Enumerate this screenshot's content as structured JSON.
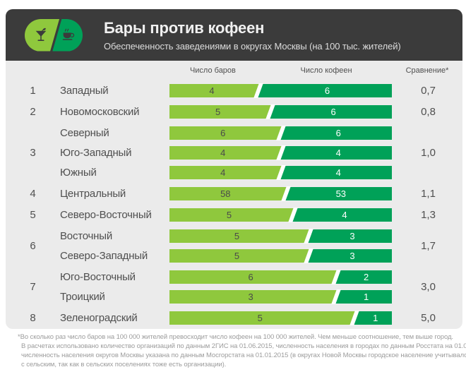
{
  "header": {
    "title": "Бары против кофеен",
    "subtitle": "Обеспеченность заведениями в округах Москвы (на 100 тыс. жителей)",
    "icons": [
      "cocktail-icon",
      "coffee-cup-icon"
    ]
  },
  "columns": {
    "bars": "Число баров",
    "cafes": "Число кофеен",
    "comparison": "Сравнение*"
  },
  "colors": {
    "bars_segment": "#8fc83d",
    "cafes_segment": "#00a158",
    "header_bg": "#3b3b3b",
    "card_bg": "#ebebeb",
    "text": "#4f4f4f",
    "footnote_text": "#9c9c9c",
    "divider": "#ffffff"
  },
  "table": {
    "groups": [
      {
        "rank": "1",
        "ratio": "0,7",
        "rows": [
          {
            "name": "Западный",
            "bars": 4,
            "cafes": 6
          }
        ]
      },
      {
        "rank": "2",
        "ratio": "0,8",
        "rows": [
          {
            "name": "Новомосковский",
            "bars": 5,
            "cafes": 6
          }
        ]
      },
      {
        "rank": "3",
        "ratio": "1,0",
        "rows": [
          {
            "name": "Северный",
            "bars": 6,
            "cafes": 6
          },
          {
            "name": "Юго-Западный",
            "bars": 4,
            "cafes": 4
          },
          {
            "name": "Южный",
            "bars": 4,
            "cafes": 4
          }
        ]
      },
      {
        "rank": "4",
        "ratio": "1,1",
        "rows": [
          {
            "name": "Центральный",
            "bars": 58,
            "cafes": 53
          }
        ]
      },
      {
        "rank": "5",
        "ratio": "1,3",
        "rows": [
          {
            "name": "Северо-Восточный",
            "bars": 5,
            "cafes": 4
          }
        ]
      },
      {
        "rank": "6",
        "ratio": "1,7",
        "rows": [
          {
            "name": "Восточный",
            "bars": 5,
            "cafes": 3
          },
          {
            "name": "Северо-Западный",
            "bars": 5,
            "cafes": 3
          }
        ]
      },
      {
        "rank": "7",
        "ratio": "3,0",
        "rows": [
          {
            "name": "Юго-Восточный",
            "bars": 6,
            "cafes": 2
          },
          {
            "name": "Троицкий",
            "bars": 3,
            "cafes": 1
          }
        ]
      },
      {
        "rank": "8",
        "ratio": "5,0",
        "rows": [
          {
            "name": "Зеленоградский",
            "bars": 5,
            "cafes": 1
          }
        ]
      }
    ]
  },
  "footnote": {
    "lines": [
      "*Во сколько раз число баров на 100 000 жителей превосходит число кофеен на 100 000 жителей. Чем меньше соотношение, тем выше город.",
      "В расчетах использовано количество организаций по данным 2ГИС на 01.06.2015, численность населения в городах по данным Росстата на 01.01.2015,",
      "численность населения округов Москвы указана по данным Мосгорстата на 01.01.2015 (в округах Новой Москвы городское население учитывалось вместе",
      "с сельским, так как в сельских поселениях тоже есть организации)."
    ]
  },
  "chart_data": {
    "type": "bar",
    "variant": "horizontal-paired-stacked-100pct",
    "title": "Бары против кофеен",
    "subtitle": "Обеспеченность заведениями в округах Москвы (на 100 тыс. жителей)",
    "categories": [
      "Западный",
      "Новомосковский",
      "Северный",
      "Юго-Западный",
      "Южный",
      "Центральный",
      "Северо-Восточный",
      "Восточный",
      "Северо-Западный",
      "Юго-Восточный",
      "Троицкий",
      "Зеленоградский"
    ],
    "series": [
      {
        "name": "Число баров",
        "color": "#8fc83d",
        "values": [
          4,
          5,
          6,
          4,
          4,
          58,
          5,
          5,
          5,
          6,
          3,
          5
        ]
      },
      {
        "name": "Число кофеен",
        "color": "#00a158",
        "values": [
          6,
          6,
          6,
          4,
          4,
          53,
          4,
          3,
          3,
          2,
          1,
          1
        ]
      }
    ],
    "ranks": [
      1,
      2,
      3,
      3,
      3,
      4,
      5,
      6,
      6,
      7,
      7,
      8
    ],
    "comparison_label": "Сравнение*",
    "comparison_by_rank": {
      "1": "0,7",
      "2": "0,8",
      "3": "1,0",
      "4": "1,1",
      "5": "1,3",
      "6": "1,7",
      "7": "3,0",
      "8": "5,0"
    },
    "layout": "each bar spans full track width; left segment width = bars/(bars+cafes), white slash divider between segments; legend as column headers; grid off"
  }
}
